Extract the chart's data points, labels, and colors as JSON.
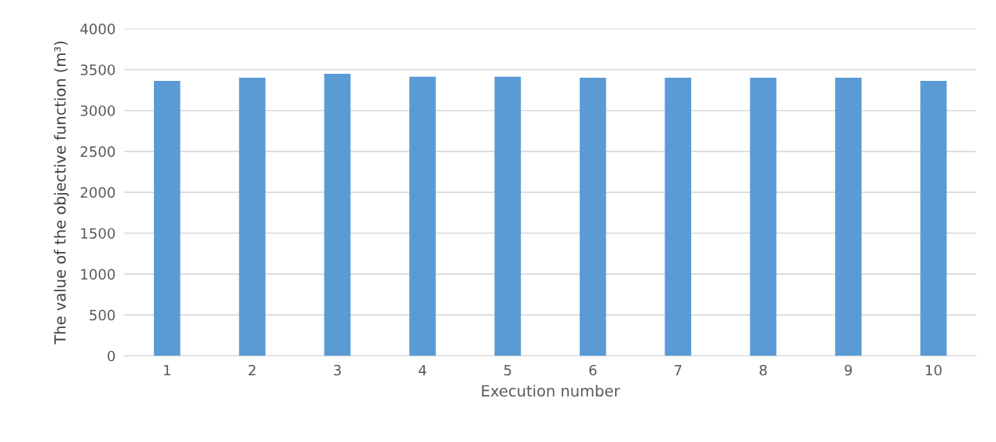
{
  "chart_data": {
    "type": "bar",
    "xlabel": "Execution number",
    "ylabel": "The value of the objective function (m³)",
    "categories": [
      "1",
      "2",
      "3",
      "4",
      "5",
      "6",
      "7",
      "8",
      "9",
      "10"
    ],
    "values": [
      3362,
      3400,
      3448,
      3414,
      3414,
      3400,
      3400,
      3400,
      3400,
      3362
    ],
    "color": "#5b9bd5",
    "ylim": [
      0,
      4000
    ],
    "yticks": [
      0,
      500,
      1000,
      1500,
      2000,
      2500,
      3000,
      3500,
      4000
    ],
    "grid": "y"
  }
}
